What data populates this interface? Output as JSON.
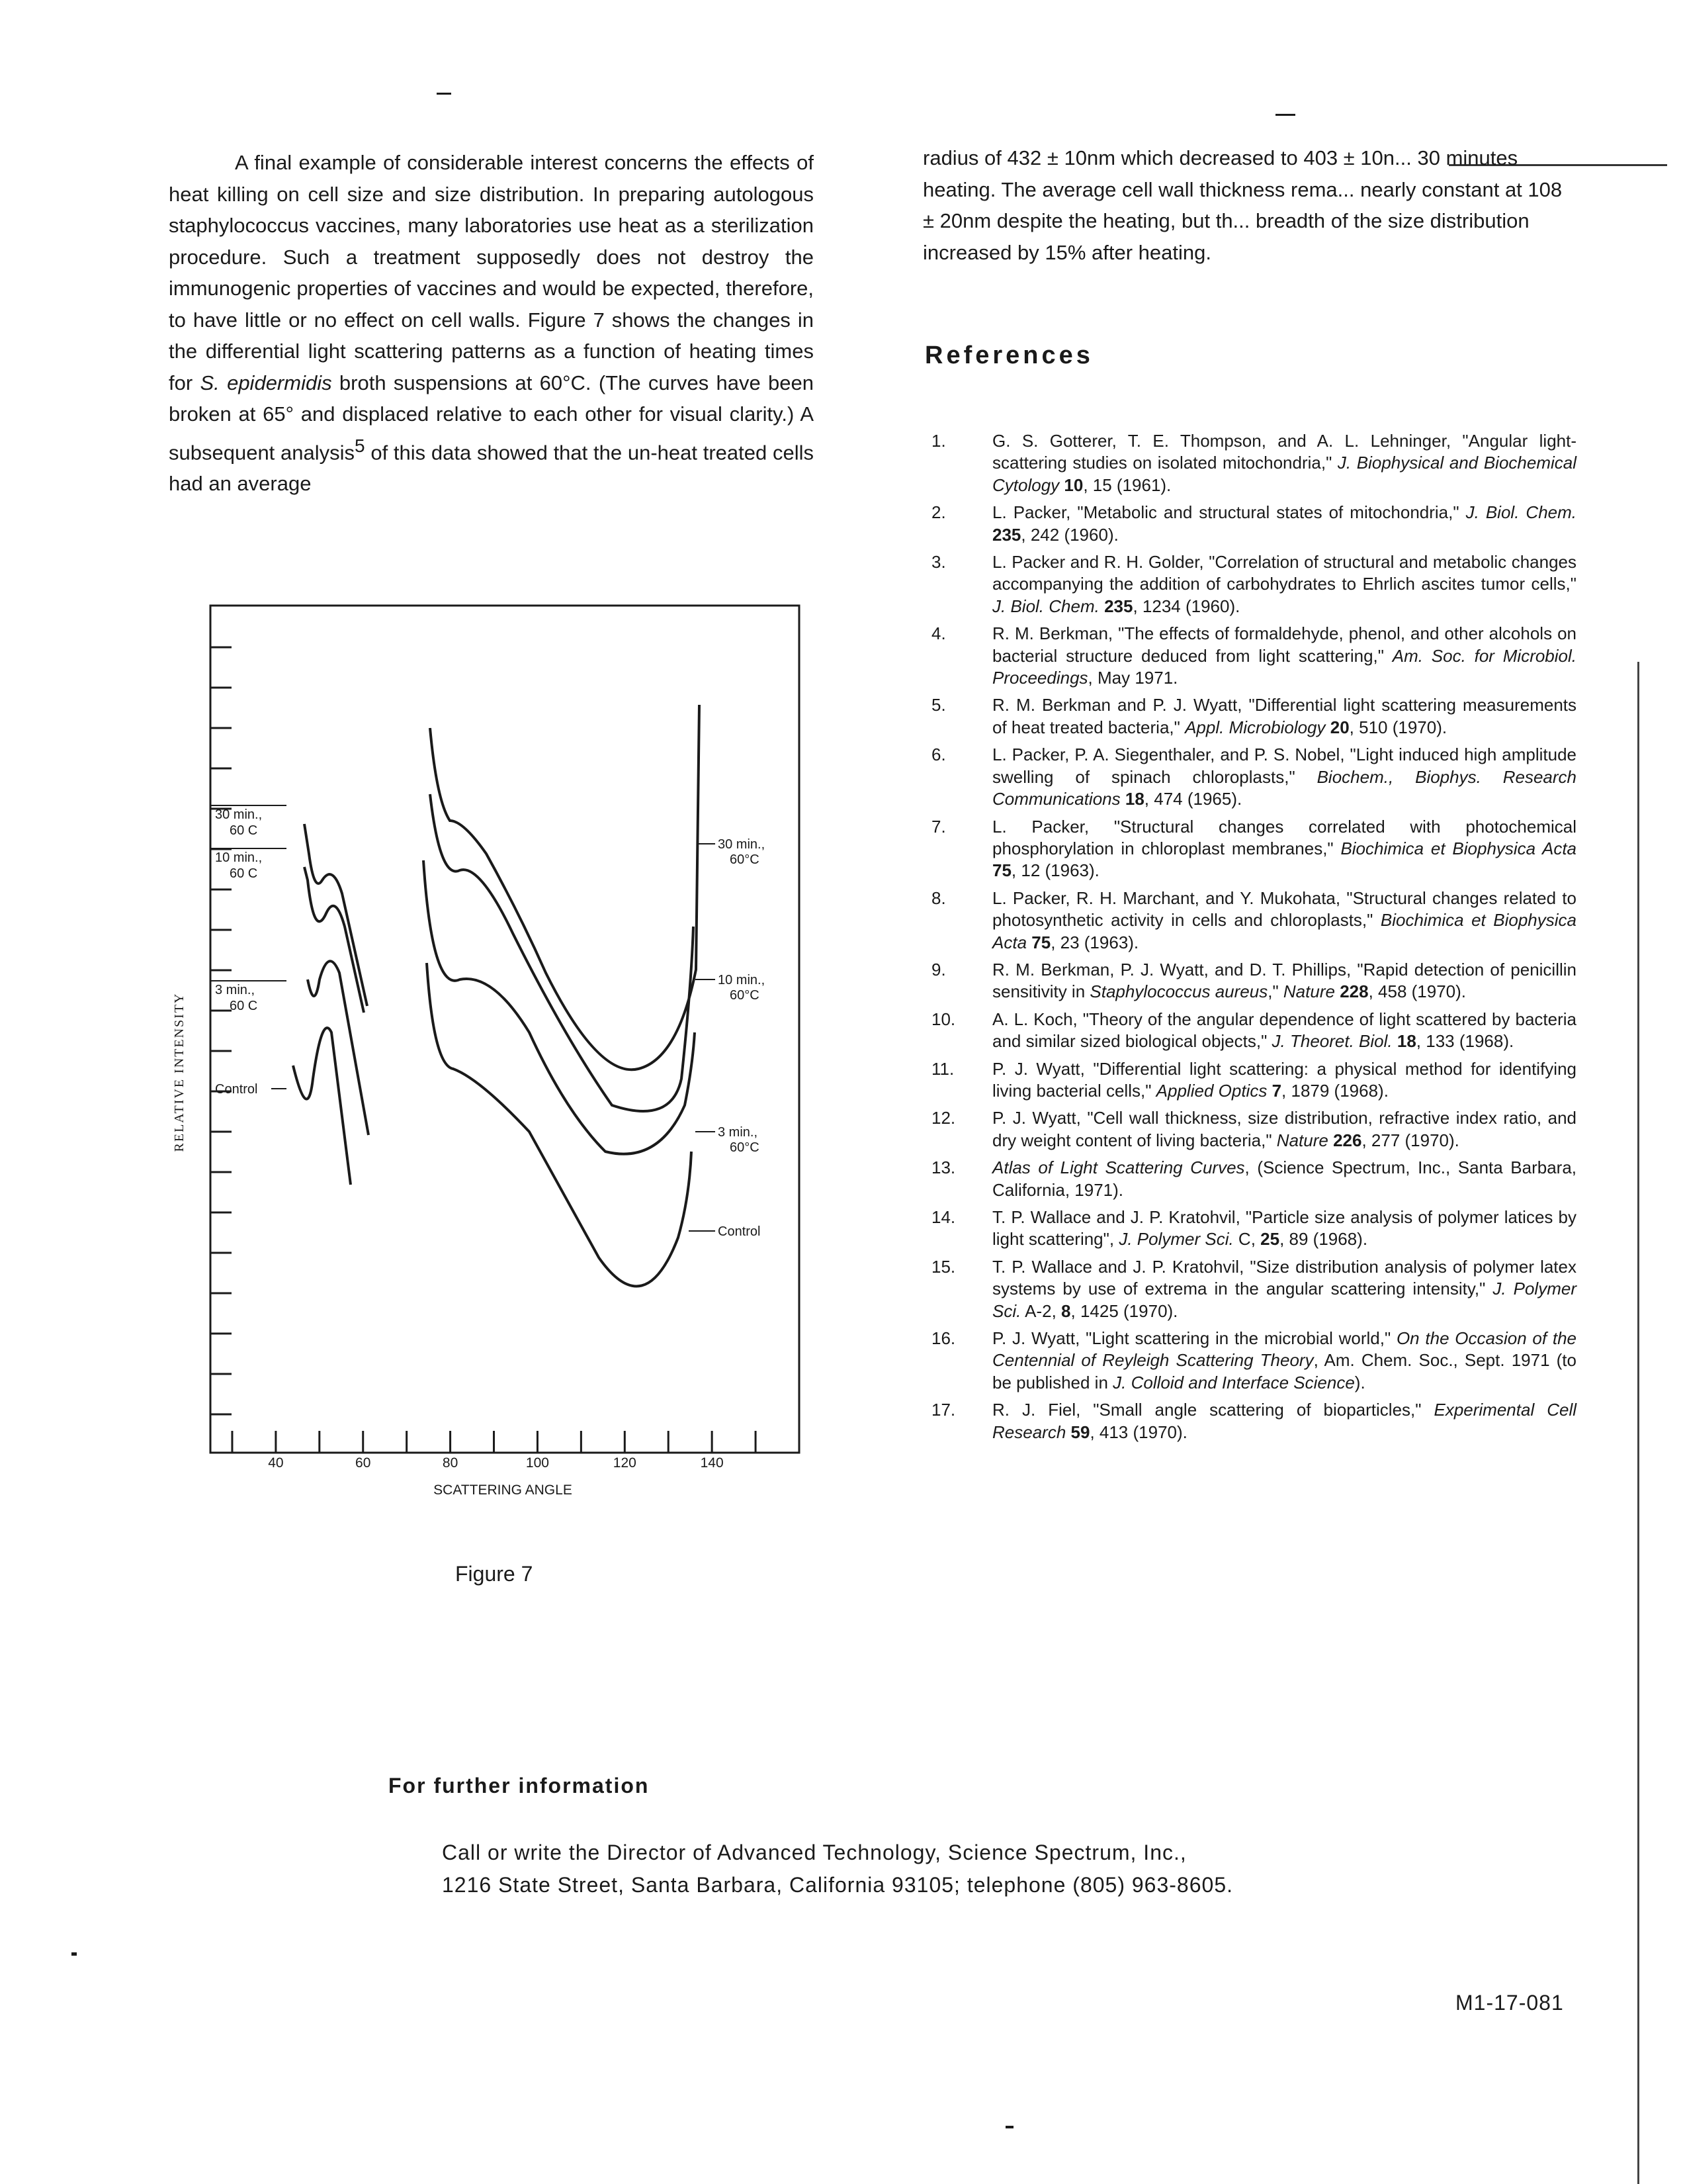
{
  "left_paragraph": {
    "p1": "A final example of considerable interest concerns the effects of heat killing on cell size and size distribution. In preparing autologous staphylococcus vaccines, many laboratories use heat as a sterilization procedure. Such a treatment supposedly does not destroy the immunogenic properties of vaccines and would be expected, therefore, to have little or no effect on cell walls. Figure 7 shows the changes in the differential light scattering patterns as a function of heating times for ",
    "species": "S. epidermidis",
    "p2": " broth suspensions at 60°C. (The curves have been broken at 65° and displaced relative to each other for visual clarity.) A subsequent analysis",
    "sup": "5",
    "p3": " of this data showed that the un-heat treated cells had an average"
  },
  "right_paragraph": "radius of 432 ± 10nm which decreased to 403 ± 10n... 30 minutes heating. The average cell wall thickness rema... nearly constant at 108 ± 20nm despite the heating, but th... breadth of the size distribution increased by 15% after heating.",
  "references_heading": "References",
  "references": [
    {
      "n": "1.",
      "html": "G. S. Gotterer, T. E. Thompson, and A. L. Lehninger, \"Angular light-scattering studies on isolated mitochondria,\" <i>J. Biophysical and Biochemical Cytology</i> <b>10</b>, 15 (1961)."
    },
    {
      "n": "2.",
      "html": "L. Packer, \"Metabolic and structural states of mitochondria,\" <i>J. Biol. Chem.</i> <b>235</b>, 242 (1960)."
    },
    {
      "n": "3.",
      "html": "L. Packer and R. H. Golder, \"Correlation of structural and metabolic changes accompanying the addition of carbohydrates to Ehrlich ascites tumor cells,\" <i>J. Biol. Chem.</i> <b>235</b>, 1234 (1960)."
    },
    {
      "n": "4.",
      "html": "R. M. Berkman, \"The effects of formaldehyde, phenol, and other alcohols on bacterial structure deduced from light scattering,\" <i>Am. Soc. for Microbiol. Proceedings</i>, May 1971."
    },
    {
      "n": "5.",
      "html": "R. M. Berkman and P. J. Wyatt, \"Differential light scattering measurements of heat treated bacteria,\" <i>Appl. Microbiology</i> <b>20</b>, 510 (1970)."
    },
    {
      "n": "6.",
      "html": "L. Packer, P. A. Siegenthaler, and P. S. Nobel, \"Light induced high amplitude swelling of spinach chloroplasts,\" <i>Biochem., Biophys. Research Communications</i> <b>18</b>, 474 (1965)."
    },
    {
      "n": "7.",
      "html": "L. Packer, \"Structural changes correlated with photochemical phosphorylation in chloroplast membranes,\" <i>Biochimica et Biophysica Acta</i> <b>75</b>, 12 (1963)."
    },
    {
      "n": "8.",
      "html": "L. Packer, R. H. Marchant, and Y. Mukohata, \"Structural changes related to photosynthetic activity in cells and chloroplasts,\" <i>Biochimica et Biophysica Acta</i> <b>75</b>, 23 (1963)."
    },
    {
      "n": "9.",
      "html": "R. M. Berkman, P. J. Wyatt, and D. T. Phillips, \"Rapid detection of penicillin sensitivity in <i>Staphylococcus aureus</i>,\" <i>Nature</i> <b>228</b>, 458 (1970)."
    },
    {
      "n": "10.",
      "html": "A. L. Koch, \"Theory of the angular dependence of light scattered by bacteria and similar sized biological objects,\" <i>J. Theoret. Biol.</i> <b>18</b>, 133 (1968)."
    },
    {
      "n": "11.",
      "html": "P. J. Wyatt, \"Differential light scattering: a physical method for identifying living bacterial cells,\" <i>Applied Optics</i> <b>7</b>, 1879 (1968)."
    },
    {
      "n": "12.",
      "html": "P. J. Wyatt, \"Cell wall thickness, size distribution, refractive index ratio, and dry weight content of living bacteria,\" <i>Nature</i> <b>226</b>, 277 (1970)."
    },
    {
      "n": "13.",
      "html": "<i>Atlas of Light Scattering Curves</i>, (Science Spectrum, Inc., Santa Barbara, California, 1971)."
    },
    {
      "n": "14.",
      "html": "T. P. Wallace and J. P. Kratohvil, \"Particle size analysis of polymer latices by light scattering\", <i>J. Polymer Sci.</i> C, <b>25</b>, 89 (1968)."
    },
    {
      "n": "15.",
      "html": "T. P. Wallace and J. P. Kratohvil, \"Size distribution analysis of polymer latex systems by use of extrema in the angular scattering intensity,\" <i>J. Polymer Sci.</i> A-2, <b>8</b>, 1425 (1970)."
    },
    {
      "n": "16.",
      "html": "P. J. Wyatt, \"Light scattering in the microbial world,\" <i>On the Occasion of the Centennial of Reyleigh Scattering Theory</i>, Am. Chem. Soc., Sept. 1971 (to be published in <i>J. Colloid and Interface Science</i>)."
    },
    {
      "n": "17.",
      "html": "R. J. Fiel, \"Small angle scattering of bioparticles,\" <i>Experimental Cell Research</i> <b>59</b>, 413 (1970)."
    }
  ],
  "figure_caption": "Figure 7",
  "further_info": {
    "heading": "For further information",
    "line1": "Call or write the Director of Advanced Technology, Science Spectrum, Inc.,",
    "line2": "1216 State Street, Santa Barbara, California 93105; telephone (805) 963-8605."
  },
  "doc_id": "M1-17-081",
  "chart_data": {
    "type": "line",
    "xlabel": "SCATTERING ANGLE",
    "ylabel": "RELATIVE INTENSITY",
    "x_ticks": [
      "40",
      "60",
      "80",
      "100",
      "120",
      "140"
    ],
    "xlim": [
      25,
      160
    ],
    "break_at": 65,
    "series": [
      {
        "name": "30 min., 60 C",
        "right_name": "30 min., 60°C"
      },
      {
        "name": "10 min., 60 C",
        "right_name": "10 min., 60°C"
      },
      {
        "name": "3 min., 60 C",
        "right_name": "3 min., 60°C"
      },
      {
        "name": "Control",
        "right_name": "Control"
      }
    ],
    "note": ""
  }
}
